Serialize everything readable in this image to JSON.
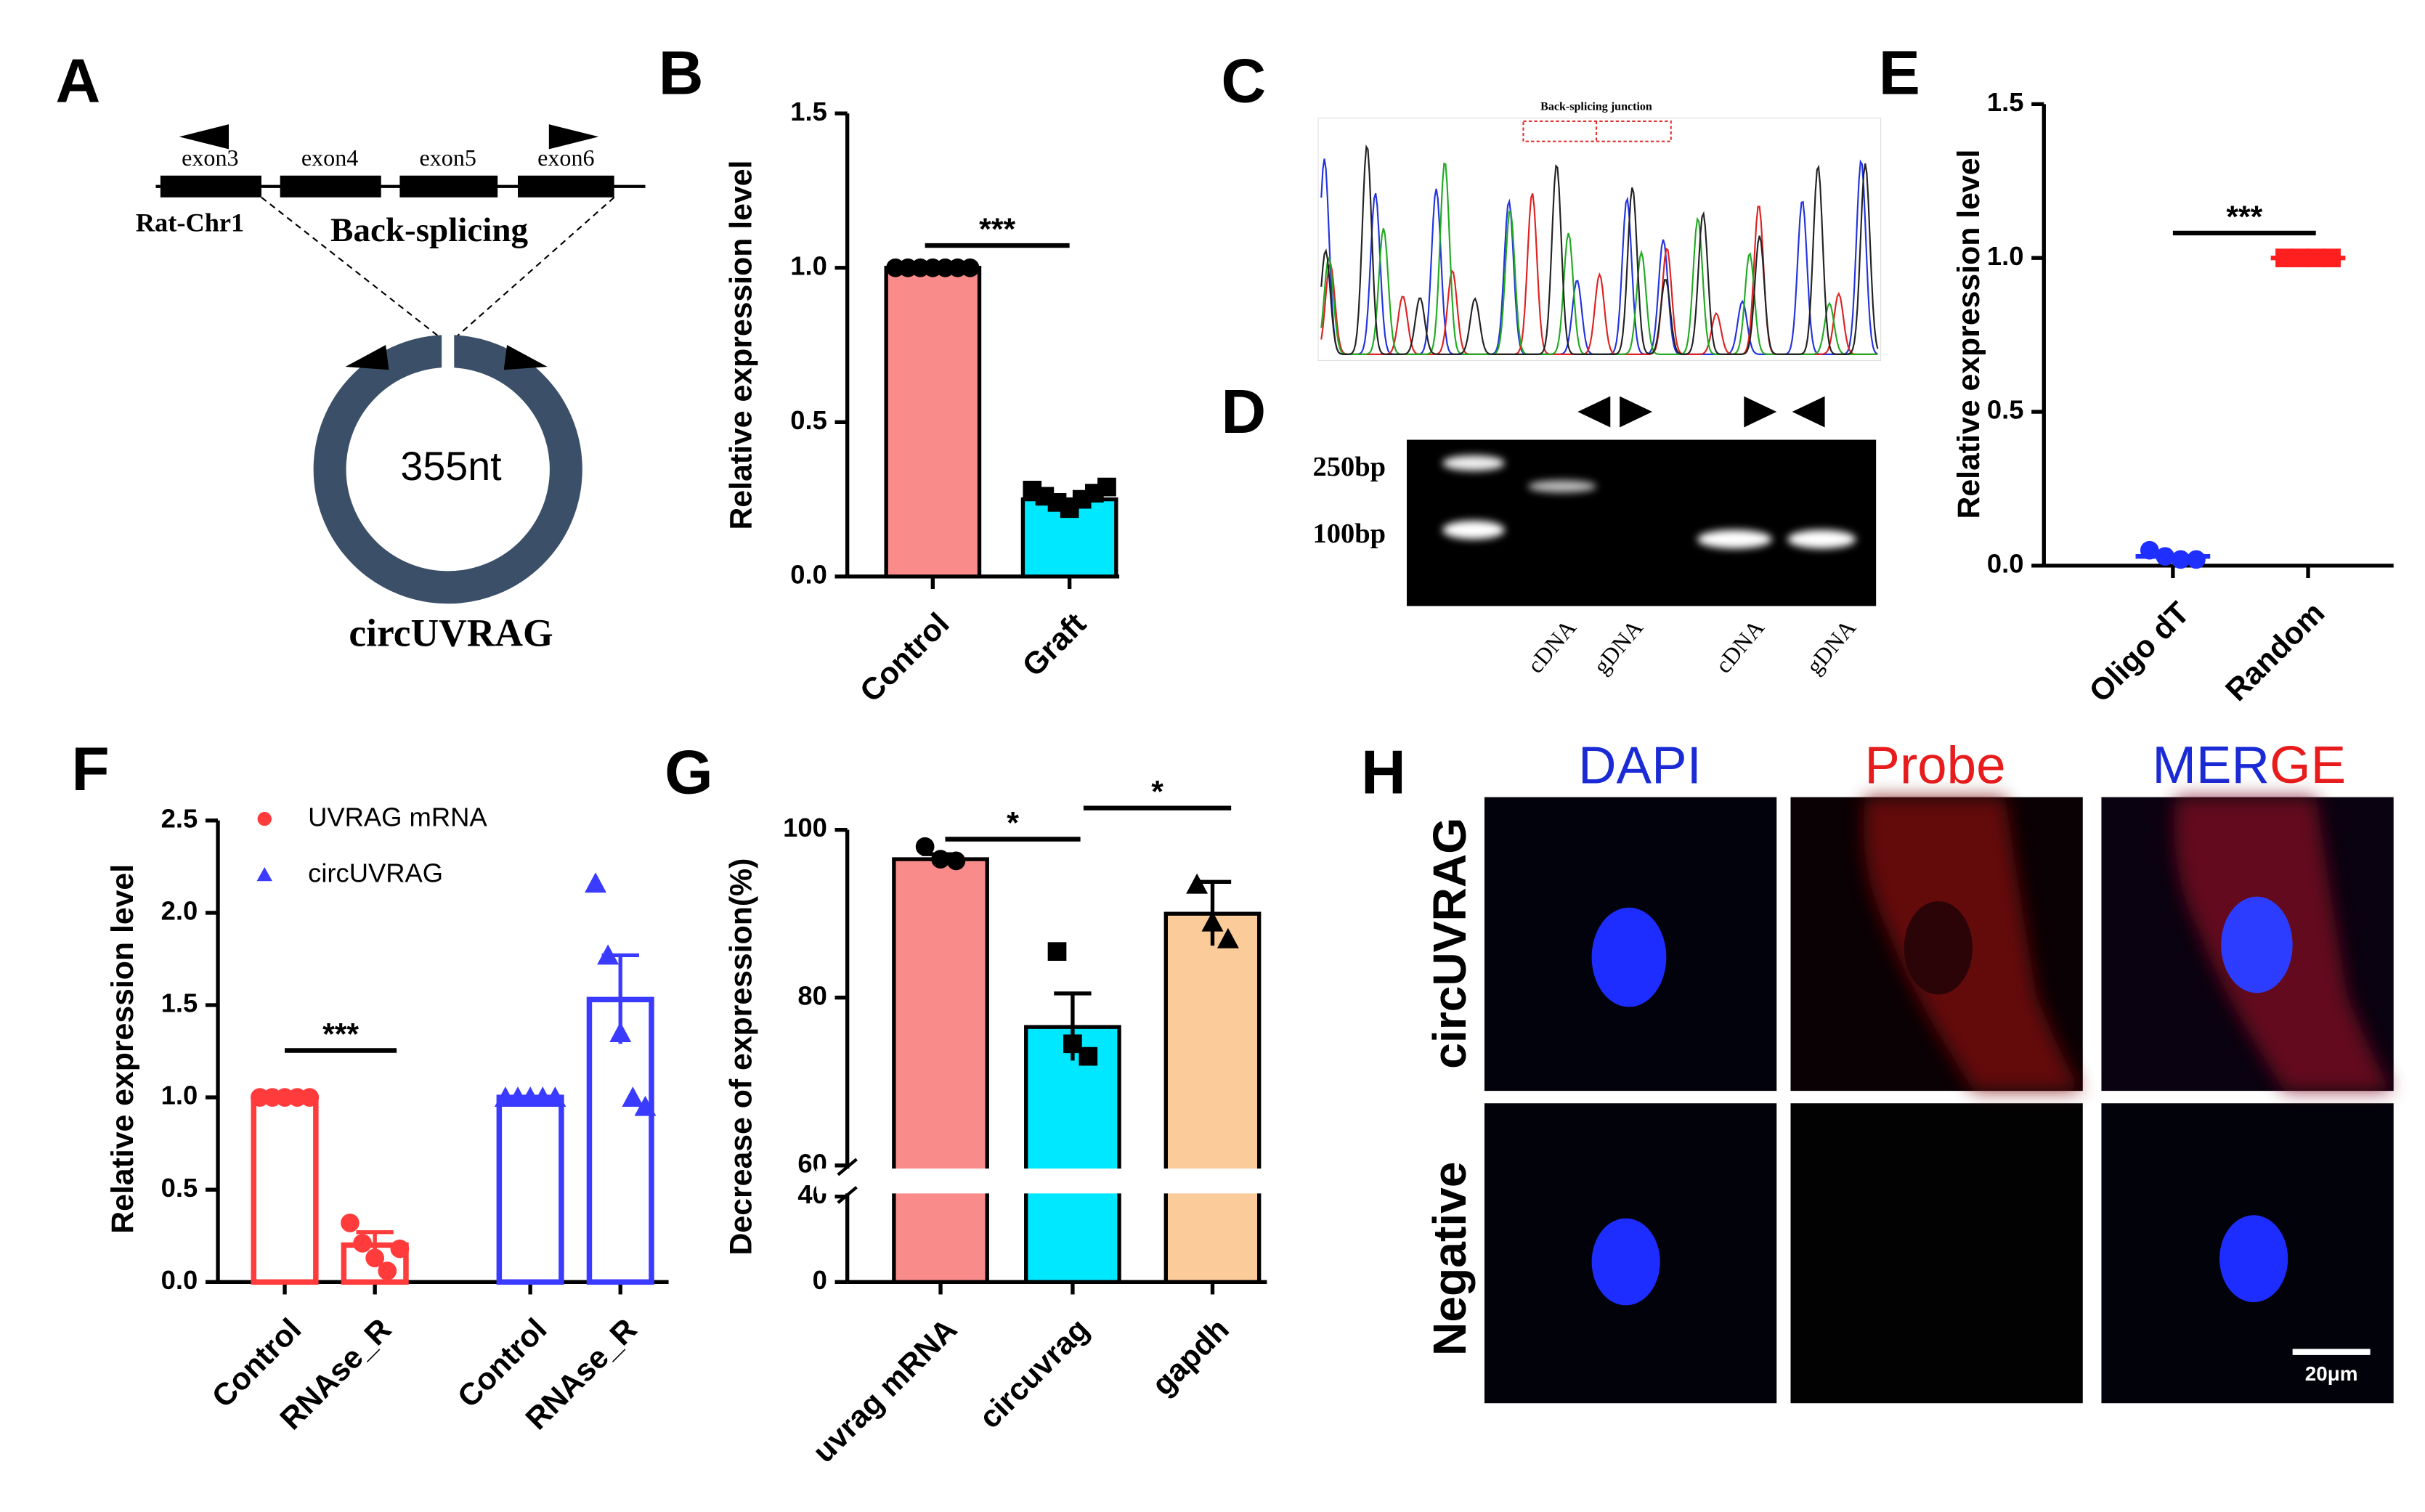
{
  "chart_data": [
    {
      "type": "bar",
      "panel": "B",
      "ylabel": "Relative expression level",
      "categories": [
        "Control",
        "Graft"
      ],
      "values": [
        1.0,
        0.25
      ],
      "colors": [
        "#f98b8b",
        "#00e8ff"
      ],
      "markers": [
        "circle",
        "square"
      ],
      "points": [
        [
          1,
          1,
          1,
          1,
          1,
          1,
          1
        ],
        [
          0.28,
          0.26,
          0.24,
          0.22,
          0.25,
          0.27,
          0.29
        ]
      ],
      "ylim": [
        0,
        1.5
      ],
      "yticks": [
        {
          "value": 0,
          "label": "0.0"
        },
        {
          "value": 0.5,
          "label": "0.5"
        },
        {
          "value": 1.0,
          "label": "1.0"
        },
        {
          "value": 1.5,
          "label": "1.5"
        }
      ],
      "annotations": [
        "***"
      ]
    },
    {
      "type": "dot",
      "panel": "E",
      "ylabel": "Relative expression level",
      "categories": [
        "Oligo dT",
        "Random"
      ],
      "values": [
        0.03,
        1.0
      ],
      "colors": [
        "#1f2fff",
        "#ff1f1f"
      ],
      "markers": [
        "circle",
        "square"
      ],
      "points": [
        [
          0.05,
          0.03,
          0.02,
          0.02
        ],
        [
          1,
          1,
          1,
          1
        ]
      ],
      "ylim": [
        0,
        1.5
      ],
      "yticks": [
        {
          "value": 0,
          "label": "0.0"
        },
        {
          "value": 0.5,
          "label": "0.5"
        },
        {
          "value": 1.0,
          "label": "1.0"
        },
        {
          "value": 1.5,
          "label": "1.5"
        }
      ],
      "annotations": [
        "***"
      ]
    },
    {
      "type": "bar",
      "panel": "F",
      "bar_style": "outline",
      "ylabel": "Relative expression level",
      "categories": [
        "Control",
        "RNAse_R",
        "Control",
        "RNAse_R"
      ],
      "series": [
        {
          "name": "UVRAG mRNA",
          "color": "#ff3b3b",
          "marker": "circle",
          "values": [
            1.0,
            0.2,
            null,
            null
          ],
          "errors": [
            0,
            0.07,
            null,
            null
          ],
          "points": [
            [
              1,
              1,
              1,
              1,
              1
            ],
            [
              0.32,
              0.21,
              0.13,
              0.06,
              0.18
            ],
            null,
            null
          ]
        },
        {
          "name": "circUVRAG",
          "color": "#3b3bff",
          "marker": "triangle",
          "values": [
            null,
            null,
            1.0,
            1.53
          ],
          "errors": [
            null,
            null,
            0,
            0.24
          ],
          "points": [
            null,
            null,
            [
              1,
              1,
              1,
              1,
              1
            ],
            [
              2.16,
              1.77,
              1.35,
              1.0,
              0.95
            ]
          ]
        }
      ],
      "legend": "top-left",
      "ylim": [
        0,
        2.5
      ],
      "yticks": [
        {
          "value": 0,
          "label": "0.0"
        },
        {
          "value": 0.5,
          "label": "0.5"
        },
        {
          "value": 1.0,
          "label": "1.0"
        },
        {
          "value": 1.5,
          "label": "1.5"
        },
        {
          "value": 2.0,
          "label": "2.0"
        },
        {
          "value": 2.5,
          "label": "2.5"
        }
      ],
      "annotations": [
        "***"
      ]
    },
    {
      "type": "bar",
      "panel": "G",
      "ylabel": "Decrease of expression(%)",
      "categories": [
        "uvrag mRNA",
        "circuvrag",
        "gapdh"
      ],
      "values": [
        96.5,
        76.5,
        90
      ],
      "errors": [
        0.6,
        4,
        3.8
      ],
      "colors": [
        "#f98b8b",
        "#00e8ff",
        "#fccb9a"
      ],
      "markers": [
        "circle",
        "square",
        "triangle"
      ],
      "points": [
        [
          98,
          96.5,
          96.3
        ],
        [
          85.5,
          74.5,
          73
        ],
        [
          93.5,
          89,
          87
        ]
      ],
      "ylim": [
        0,
        100
      ],
      "yticks": [
        0,
        40,
        60,
        80,
        100
      ],
      "axis_break": [
        40,
        60
      ],
      "annotations": [
        "*",
        "*"
      ]
    }
  ],
  "panel_a": {
    "label": "A",
    "exons": [
      "exon3",
      "exon4",
      "exon5",
      "exon6"
    ],
    "chromosome": "Rat-Chr1",
    "event": "Back-splicing",
    "size": "355nt",
    "name": "circUVRAG"
  },
  "panel_c": {
    "label": "C",
    "title": "Back-splicing junction"
  },
  "panel_d": {
    "label": "D",
    "ladder": [
      "250bp",
      "100bp"
    ],
    "lanes": [
      "cDNA",
      "gDNA",
      "cDNA",
      "gDNA"
    ]
  },
  "panel_h": {
    "label": "H",
    "columns": [
      "DAPI",
      "Probe"
    ],
    "merge": [
      "MER",
      "GE"
    ],
    "rows": [
      "circUVRAG",
      "Negative"
    ],
    "scale": "20μm"
  }
}
